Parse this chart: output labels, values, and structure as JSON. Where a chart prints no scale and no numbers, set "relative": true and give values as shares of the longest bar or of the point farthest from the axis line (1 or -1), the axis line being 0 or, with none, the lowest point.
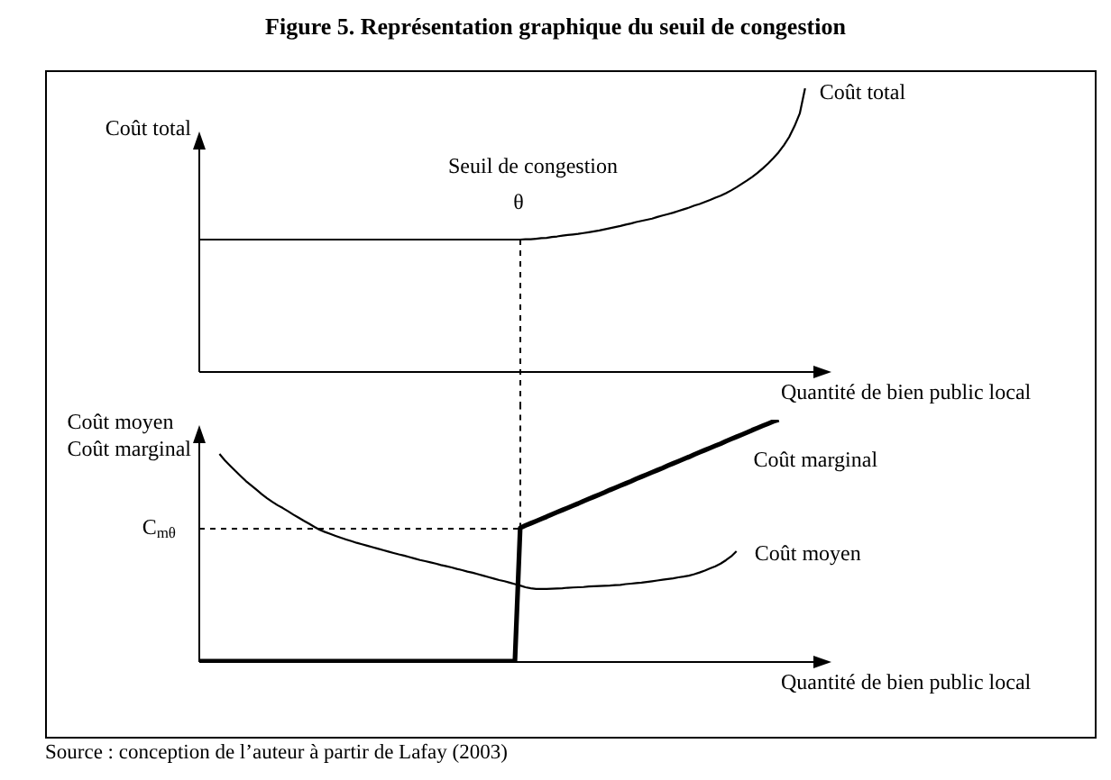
{
  "chart_data": [
    {
      "type": "line",
      "title": "Figure 5. Représentation graphique du seuil de congestion",
      "xlabel": "Quantité de bien public local",
      "ylabel": "Coût total",
      "relative": true,
      "categories": [
        null,
        null,
        null,
        null,
        null,
        null,
        null,
        null,
        null,
        null,
        null,
        null,
        null,
        null,
        null,
        null,
        null,
        null,
        null,
        null,
        null,
        null,
        null,
        null,
        null,
        null,
        null,
        null,
        null,
        null,
        null,
        null,
        null,
        null,
        null,
        null,
        null,
        null,
        null,
        null,
        null,
        null,
        null,
        null,
        null,
        null,
        null,
        null,
        null,
        null,
        null,
        null,
        null,
        null,
        null,
        null,
        null,
        null,
        null,
        null,
        null,
        null,
        null,
        null,
        null,
        null,
        null,
        null,
        null,
        null,
        null,
        null,
        null,
        null,
        null,
        null,
        null,
        null,
        null,
        null,
        null,
        null,
        null,
        null,
        null,
        null,
        null,
        null,
        null,
        null,
        null,
        null,
        null,
        null,
        null,
        null,
        null,
        null,
        null,
        null,
        null,
        null,
        null,
        null,
        null,
        null,
        null,
        null,
        null,
        null,
        null,
        null,
        null,
        null,
        null,
        null,
        null,
        null,
        null,
        null,
        null
      ],
      "series": [
        {
          "name": "Coût total",
          "color": "#000000",
          "values": [
            0.465,
            0.465,
            0.465,
            0.465,
            0.465,
            0.465,
            0.465,
            0.465,
            0.465,
            0.465,
            0.465,
            0.465,
            0.465,
            0.465,
            0.465,
            0.465,
            0.465,
            0.465,
            0.465,
            0.465,
            0.465,
            0.465,
            0.465,
            0.465,
            0.465,
            0.465,
            0.465,
            0.465,
            0.465,
            0.465,
            0.465,
            0.465,
            0.465,
            0.465,
            0.465,
            0.465,
            0.465,
            0.465,
            0.465,
            0.465,
            0.465,
            0.465,
            0.465,
            0.465,
            0.465,
            0.465,
            0.465,
            0.465,
            0.465,
            0.465,
            0.465,
            0.465,
            0.465,
            0.465,
            0.465,
            0.465,
            0.465,
            0.465,
            0.465,
            0.465,
            0.465,
            0.465,
            0.466,
            0.466,
            0.468,
            0.47,
            0.471,
            0.474,
            0.476,
            0.479,
            0.481,
            0.483,
            0.485,
            0.488,
            0.491,
            0.494,
            0.497,
            0.501,
            0.505,
            0.509,
            0.513,
            0.518,
            0.522,
            0.527,
            0.531,
            0.535,
            0.539,
            0.545,
            0.55,
            0.555,
            0.56,
            0.566,
            0.572,
            0.578,
            0.585,
            0.591,
            0.598,
            0.605,
            0.613,
            0.62,
            0.629,
            0.639,
            0.65,
            0.662,
            0.674,
            0.687,
            0.701,
            0.717,
            0.734,
            0.753,
            0.774,
            0.799,
            0.828,
            0.866,
            0.911,
            1,
            null,
            null,
            null,
            null,
            null
          ]
        }
      ],
      "annotations": [
        "Seuil de congestion",
        "θ"
      ]
    },
    {
      "type": "line",
      "xlabel": "Quantité de bien public local",
      "ylabel": "Coût moyen\nCoût marginal",
      "relative": true,
      "categories": [
        null,
        null,
        null,
        null,
        null,
        null,
        null,
        null,
        null,
        null,
        null,
        null,
        null,
        null,
        null,
        null,
        null,
        null,
        null,
        null,
        null,
        null,
        null,
        null,
        null,
        null,
        null,
        null,
        null,
        null,
        null,
        null,
        null,
        null,
        null,
        null,
        null,
        null,
        null,
        null,
        null,
        null,
        null,
        null,
        null,
        null,
        null,
        null,
        null,
        null,
        null,
        null,
        null,
        null,
        null,
        null,
        null,
        null,
        null,
        null,
        null,
        null,
        null,
        null,
        null,
        null,
        null,
        null,
        null,
        null,
        null,
        null,
        null,
        null,
        null,
        null,
        null,
        null,
        null,
        null,
        null,
        null,
        null,
        null,
        null,
        null,
        null,
        null,
        null,
        null,
        null,
        null,
        null,
        null,
        null,
        null,
        null,
        null,
        null,
        null,
        null,
        null,
        null,
        null,
        null,
        null,
        null,
        null,
        null,
        null,
        null,
        null,
        null,
        null,
        null,
        null,
        null,
        null,
        null,
        null,
        null
      ],
      "series": [
        {
          "name": "Coût moyen",
          "color": "#000000",
          "values": [
            null,
            null,
            null,
            null,
            0.858,
            0.832,
            0.81,
            0.788,
            0.767,
            0.746,
            0.728,
            0.71,
            0.692,
            0.675,
            0.66,
            0.646,
            0.634,
            0.621,
            0.607,
            0.594,
            0.581,
            0.569,
            0.556,
            0.544,
            0.535,
            0.527,
            0.519,
            0.511,
            0.504,
            0.497,
            0.49,
            0.484,
            0.478,
            0.472,
            0.466,
            0.46,
            0.454,
            0.448,
            0.442,
            0.437,
            0.431,
            0.425,
            0.419,
            0.414,
            0.409,
            0.404,
            0.398,
            0.393,
            0.388,
            0.382,
            0.377,
            0.371,
            0.366,
            0.36,
            0.354,
            0.348,
            0.342,
            0.336,
            0.331,
            0.325,
            0.319,
            0.313,
            0.306,
            0.302,
            0.299,
            0.299,
            0.299,
            0.3,
            0.301,
            0.302,
            0.304,
            0.305,
            0.306,
            0.307,
            0.309,
            0.31,
            0.311,
            0.312,
            0.313,
            0.315,
            0.316,
            0.319,
            0.321,
            0.323,
            0.325,
            0.328,
            0.331,
            0.334,
            0.337,
            0.34,
            0.343,
            0.347,
            0.35,
            0.354,
            0.36,
            0.367,
            0.375,
            0.384,
            0.393,
            0.404,
            0.418,
            0.434,
            0.455,
            null,
            null,
            null,
            null,
            null,
            null,
            null,
            null,
            null,
            null,
            null,
            null,
            null,
            null,
            null,
            null,
            null,
            null
          ]
        },
        {
          "name": "Coût marginal",
          "color": "#000000",
          "values": [
            0,
            0,
            0,
            0,
            0,
            0,
            0,
            0,
            0,
            0,
            0,
            0,
            0,
            0,
            0,
            0,
            0,
            0,
            0,
            0,
            0,
            0,
            0,
            0,
            0,
            0,
            0,
            0,
            0,
            0,
            0,
            0,
            0,
            0,
            0,
            0,
            0,
            0,
            0,
            0,
            0,
            0,
            0,
            0,
            0,
            0,
            0,
            0,
            0,
            0,
            0,
            0,
            0,
            0,
            0,
            0,
            0,
            0,
            0,
            0,
            0,
            0.552,
            0.562,
            0.571,
            0.58,
            0.589,
            0.598,
            0.608,
            0.617,
            0.626,
            0.635,
            0.644,
            0.653,
            0.663,
            0.672,
            0.681,
            0.69,
            0.699,
            0.709,
            0.718,
            0.727,
            0.736,
            0.745,
            0.755,
            0.764,
            0.773,
            0.782,
            0.791,
            0.8,
            0.81,
            0.819,
            0.828,
            0.837,
            0.846,
            0.856,
            0.865,
            0.874,
            0.883,
            0.892,
            0.901,
            0.911,
            0.92,
            0.929,
            0.938,
            0.947,
            0.957,
            0.966,
            0.975,
            0.984,
            0.993,
            1,
            null,
            null,
            null,
            null,
            null,
            null,
            null,
            null,
            null,
            null
          ]
        }
      ],
      "ref_lines": [
        {
          "axis": "y",
          "value": 0.55,
          "label": "C$_{mθ}$",
          "line_style": "dashed"
        }
      ],
      "annotations": [
        "Source : conception de l’auteur à partir de Lafay (2003)"
      ]
    }
  ]
}
